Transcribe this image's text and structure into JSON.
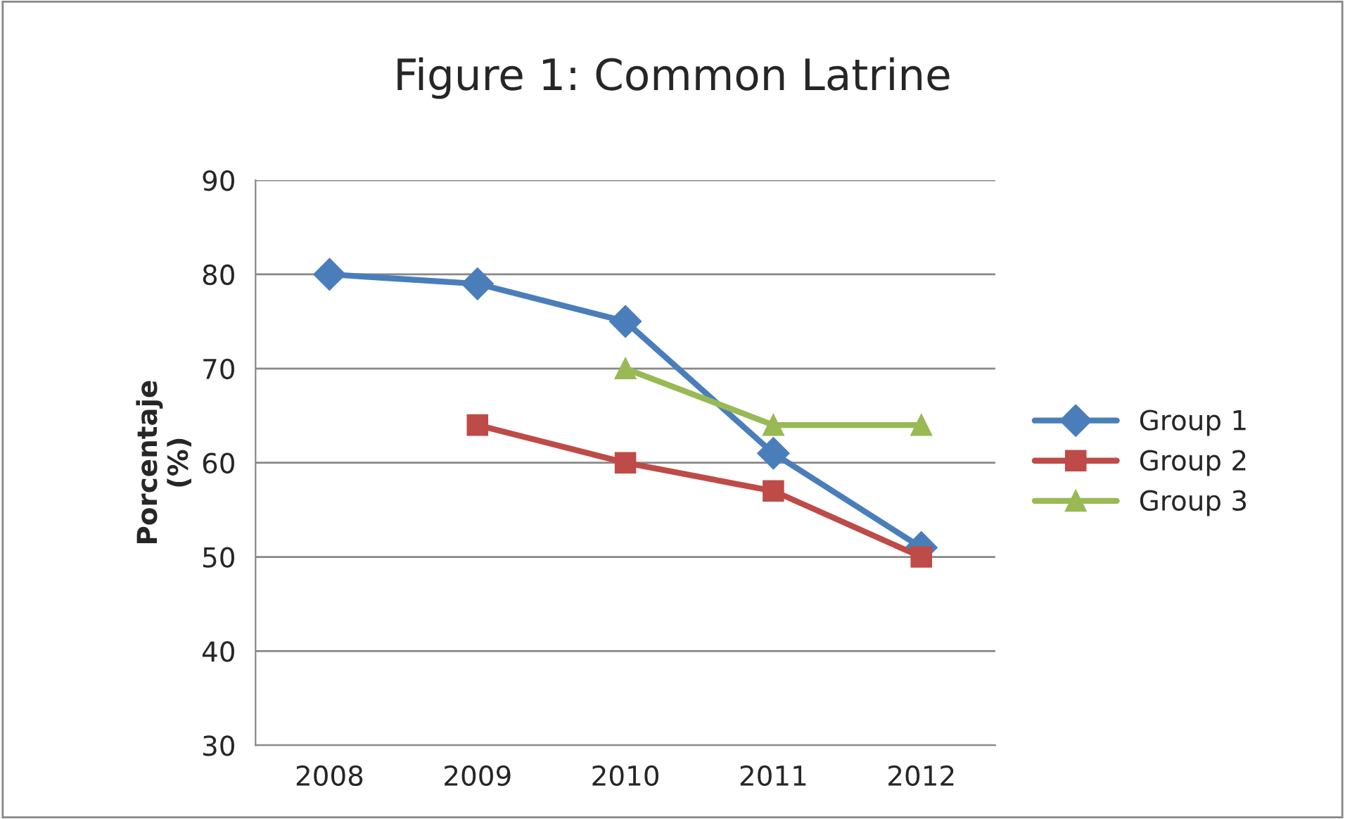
{
  "chart_data": {
    "type": "line",
    "title": "Figure 1: Common Latrine",
    "ylabel": "Porcentaje\n(%)",
    "categories": [
      "2008",
      "2009",
      "2010",
      "2011",
      "2012"
    ],
    "series": [
      {
        "name": "Group 1",
        "color": "#4a7ebb",
        "marker": "diamond",
        "values": [
          80,
          79,
          75,
          61,
          51
        ]
      },
      {
        "name": "Group 2",
        "color": "#be4b48",
        "marker": "square",
        "values": [
          null,
          64,
          60,
          57,
          50
        ]
      },
      {
        "name": "Group 3",
        "color": "#98b954",
        "marker": "triangle",
        "values": [
          null,
          null,
          70,
          64,
          64
        ]
      }
    ],
    "ylim": [
      30,
      90
    ],
    "yticks": [
      30,
      40,
      50,
      60,
      70,
      80,
      90
    ],
    "grid": "y",
    "legend": "right",
    "line_style": "solid"
  }
}
